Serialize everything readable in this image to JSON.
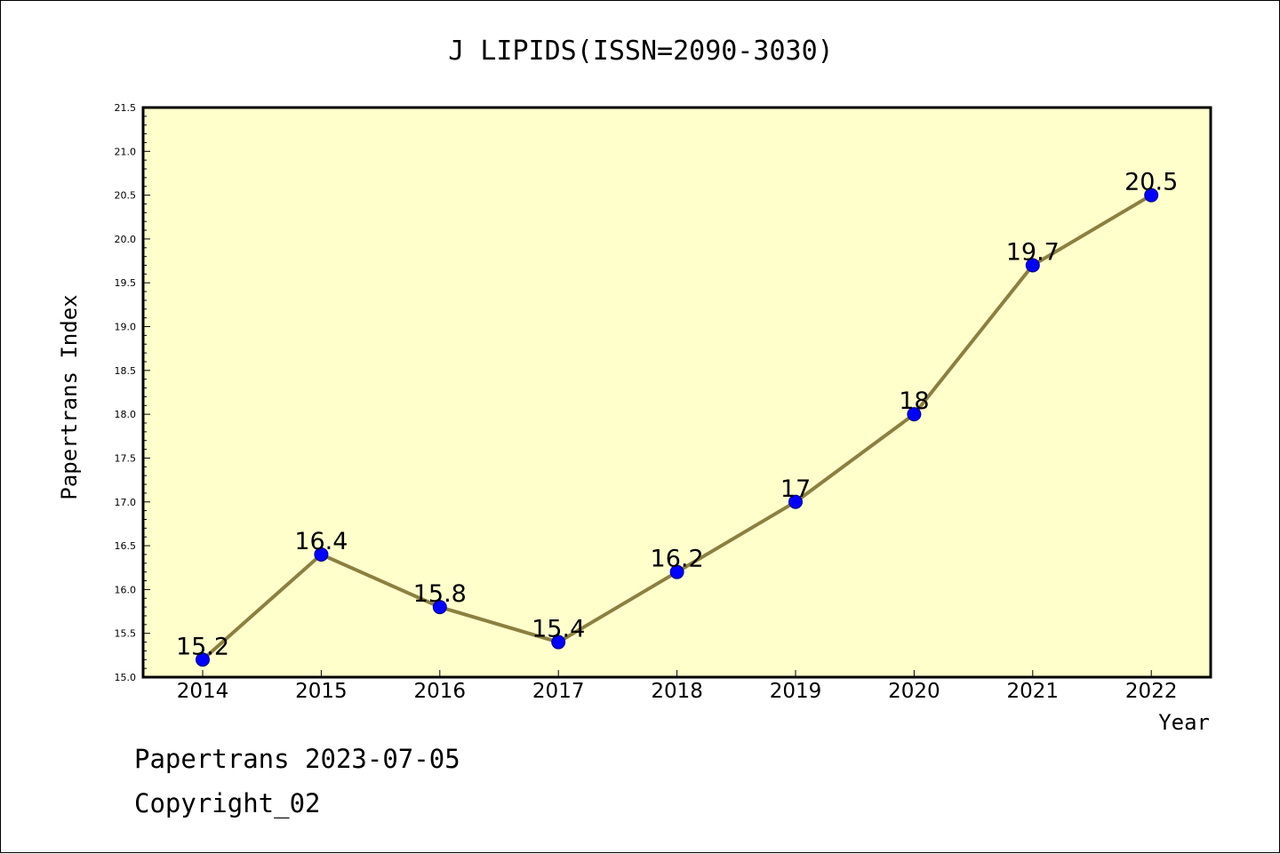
{
  "footer": {
    "line1": "Papertrans 2023-07-05",
    "line2": "Copyright_02"
  },
  "colors": {
    "plot_bg": "#ffffcc",
    "line": "#8b8040",
    "marker": "#0000ff",
    "marker_edge": "#000080"
  },
  "chart_data": {
    "type": "line",
    "title": "J LIPIDS(ISSN=2090-3030)",
    "xlabel": "Year",
    "ylabel": "Papertrans Index",
    "ylim": [
      15.0,
      21.5
    ],
    "yticks": [
      "15.0",
      "15.5",
      "16.0",
      "16.5",
      "17.0",
      "17.5",
      "18.0",
      "18.5",
      "19.0",
      "19.5",
      "20.0",
      "20.5",
      "21.0",
      "21.5"
    ],
    "grid": false,
    "categories": [
      "2014",
      "2015",
      "2016",
      "2017",
      "2018",
      "2019",
      "2020",
      "2021",
      "2022"
    ],
    "values": [
      15.2,
      16.4,
      15.8,
      15.4,
      16.2,
      17,
      18,
      19.7,
      20.5
    ],
    "data_labels": [
      "15.2",
      "16.4",
      "15.8",
      "15.4",
      "16.2",
      "17",
      "18",
      "19.7",
      "20.5"
    ]
  }
}
